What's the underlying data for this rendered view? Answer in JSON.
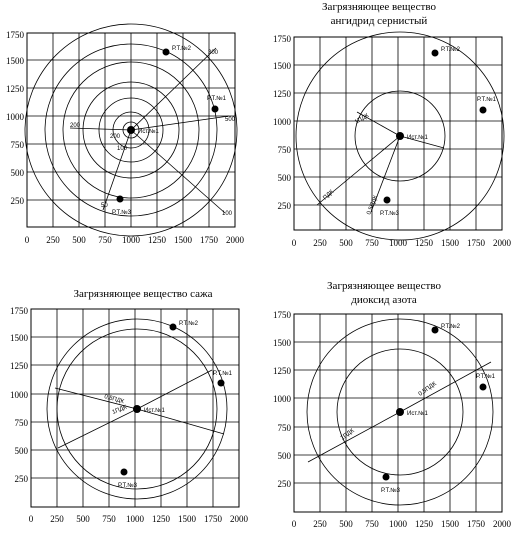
{
  "panels": [
    {
      "id": "tl",
      "title": [],
      "ticks_x": [
        "0",
        "250",
        "500",
        "750",
        "1000",
        "1250",
        "1500",
        "1750",
        "2000"
      ],
      "ticks_y": [
        "1750",
        "1500",
        "1250",
        "1000",
        "750",
        "500",
        "250"
      ],
      "source_label": "Ист.№1",
      "points": [
        {
          "name": "Р.Т.№2",
          "x": 1330,
          "y": 1590
        },
        {
          "name": "Р.Т.№1",
          "x": 1780,
          "y": 1100
        },
        {
          "name": "Р.Т.№3",
          "x": 870,
          "y": 300
        }
      ],
      "ray_labels": [
        "500",
        "300",
        "200",
        "100",
        "50",
        "200",
        "100"
      ]
    },
    {
      "id": "tr",
      "title": [
        "Загрязняющее вещество",
        "ангидрид сернистый"
      ],
      "ticks_x": [
        "0",
        "250",
        "500",
        "750",
        "1000",
        "1250",
        "1500",
        "1750",
        "2000"
      ],
      "ticks_y": [
        "1750",
        "1500",
        "1250",
        "1000",
        "750",
        "500",
        "250"
      ],
      "source_label": "Ист.№1",
      "points": [
        {
          "name": "Р.Т.№2",
          "x": 1340,
          "y": 1600
        },
        {
          "name": "Р.Т.№1",
          "x": 1780,
          "y": 1100
        },
        {
          "name": "Р.Т.№3",
          "x": 880,
          "y": 290
        }
      ],
      "ray_labels": [
        "1ПДК",
        "0,5ПДК",
        "ПДК"
      ]
    },
    {
      "id": "bl",
      "title": [
        "Загрязняющее вещество сажа"
      ],
      "ticks_x": [
        "0",
        "250",
        "500",
        "750",
        "1000",
        "1250",
        "1500",
        "1750",
        "2000"
      ],
      "ticks_y": [
        "1750",
        "1500",
        "1250",
        "1000",
        "750",
        "500",
        "250"
      ],
      "source_label": "Ист.№1",
      "points": [
        {
          "name": "Р.Т.№2",
          "x": 1340,
          "y": 1600
        },
        {
          "name": "Р.Т.№1",
          "x": 1780,
          "y": 1100
        },
        {
          "name": "Р.Т.№3",
          "x": 880,
          "y": 300
        }
      ],
      "ray_labels": [
        "0,5ПДК",
        "1ПДК"
      ]
    },
    {
      "id": "br",
      "title": [
        "Загрязняющее вещество",
        "диоксид азота"
      ],
      "ticks_x": [
        "0",
        "250",
        "500",
        "750",
        "1000",
        "1250",
        "1500",
        "1750",
        "2000"
      ],
      "ticks_y": [
        "1750",
        "1500",
        "1250",
        "1000",
        "750",
        "500",
        "250"
      ],
      "source_label": "Ист.№1",
      "points": [
        {
          "name": "Р.Т.№2",
          "x": 1340,
          "y": 1600
        },
        {
          "name": "Р.Т.№1",
          "x": 1780,
          "y": 1100
        },
        {
          "name": "Р.Т.№3",
          "x": 880,
          "y": 300
        }
      ],
      "ray_labels": [
        "0,5ПДК",
        "1ПДК"
      ]
    }
  ]
}
